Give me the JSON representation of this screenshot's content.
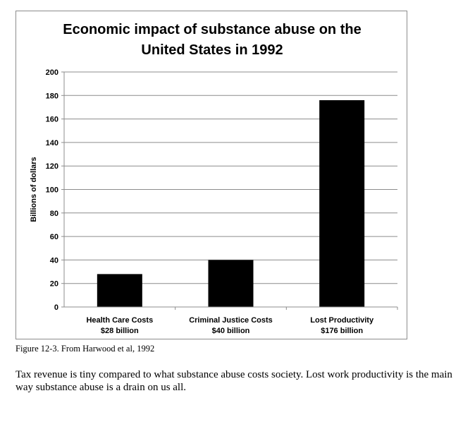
{
  "chart_data": {
    "type": "bar",
    "title_lines": [
      "Economic impact of substance abuse on the",
      "United States in 1992"
    ],
    "xlabel": "",
    "ylabel": "Billions of dollars",
    "ylim": [
      0,
      200
    ],
    "yticks": [
      0,
      20,
      40,
      60,
      80,
      100,
      120,
      140,
      160,
      180,
      200
    ],
    "categories": [
      [
        "Health Care Costs",
        "$28 billion"
      ],
      [
        "Criminal Justice Costs",
        "$40 billion"
      ],
      [
        "Lost Productivity",
        "$176 billion"
      ]
    ],
    "values": [
      28,
      40,
      176
    ],
    "grid": true,
    "legend": "none",
    "bar_color": "#000000"
  },
  "caption": "Figure 12-3. From Harwood et al, 1992",
  "body_text": "Tax revenue is tiny compared to what substance abuse costs society. Lost work productivity is the main way substance abuse is a drain on us all."
}
